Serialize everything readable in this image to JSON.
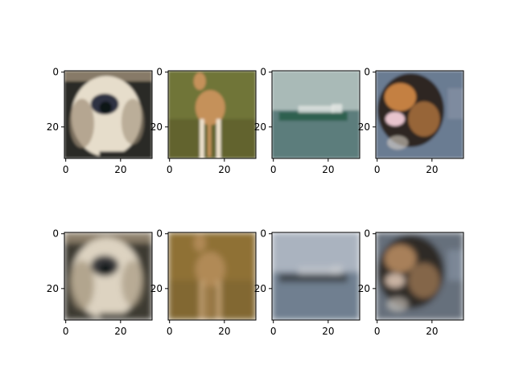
{
  "chart_data": {
    "type": "image-grid",
    "rows": 2,
    "cols": 4,
    "grid": false,
    "image_size": [
      32,
      32
    ],
    "xlim": [
      0,
      31
    ],
    "ylim": [
      31,
      0
    ],
    "x_ticks": [
      "0",
      "20"
    ],
    "y_ticks": [
      "0",
      "20"
    ],
    "panels": [
      {
        "row": 0,
        "col": 0,
        "subject": "dog",
        "variant": "original",
        "colors": {
          "bg": "#2b2a25",
          "main": "#e6ddcb",
          "accent": "#2d3142",
          "detail": "#9f8f78"
        }
      },
      {
        "row": 0,
        "col": 1,
        "subject": "deer",
        "variant": "original",
        "colors": {
          "bg": "#6f7438",
          "main": "#c5915a",
          "accent": "#f0e3cf",
          "detail": "#5a5a28"
        }
      },
      {
        "row": 0,
        "col": 2,
        "subject": "ship",
        "variant": "original",
        "colors": {
          "sky": "#a9bab7",
          "sea": "#5b7d7b",
          "ship": "#2d6150",
          "detail": "#e8ebe7"
        }
      },
      {
        "row": 0,
        "col": 3,
        "subject": "cat",
        "variant": "original",
        "colors": {
          "bg": "#6b7b92",
          "main": "#2e2720",
          "accent": "#c48042",
          "detail": "#e8c4cd"
        }
      },
      {
        "row": 1,
        "col": 0,
        "subject": "dog",
        "variant": "reconstructed",
        "colors": {
          "bg": "#3c3b33",
          "main": "#ddd3c1",
          "accent": "#3b3b3e",
          "detail": "#a09178"
        }
      },
      {
        "row": 1,
        "col": 1,
        "subject": "deer",
        "variant": "reconstructed",
        "colors": {
          "bg": "#8f7136",
          "main": "#b18a56",
          "accent": "#c9a677",
          "detail": "#7a6230"
        }
      },
      {
        "row": 1,
        "col": 2,
        "subject": "ship",
        "variant": "reconstructed",
        "colors": {
          "sky": "#aab3bf",
          "sea": "#6f7f90",
          "ship": "#424a50",
          "detail": "#c9ccd0"
        }
      },
      {
        "row": 1,
        "col": 3,
        "subject": "cat",
        "variant": "reconstructed",
        "colors": {
          "bg": "#66707c",
          "main": "#2f2a26",
          "accent": "#a8805a",
          "detail": "#c9b3a3"
        }
      }
    ]
  }
}
